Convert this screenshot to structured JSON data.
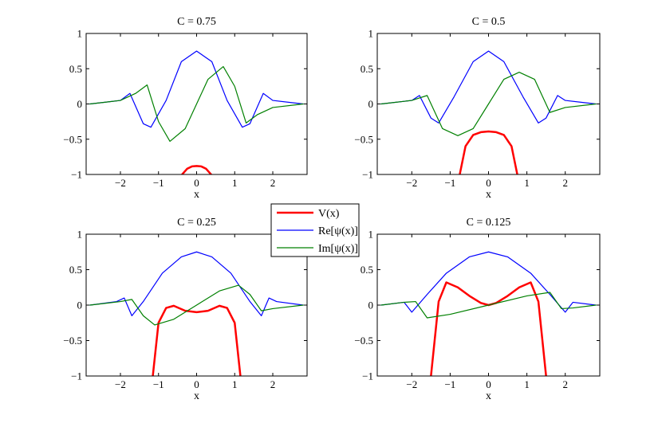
{
  "chart_data": {
    "type": "line",
    "xlabel": "x",
    "xlim": [
      -2.9,
      2.9
    ],
    "ylim": [
      -1,
      1
    ],
    "x_ticks": [
      -2,
      -1,
      0,
      1,
      2
    ],
    "x_tick_labels": [
      "−2",
      "−1",
      "0",
      "1",
      "2"
    ],
    "y_ticks": [
      1,
      0.5,
      0,
      -0.5,
      -1
    ],
    "y_tick_labels": [
      "1",
      "0.5",
      "0",
      "−0.5",
      "−1"
    ],
    "legend": {
      "location": "center",
      "entries": [
        {
          "label": "V(x)",
          "color": "#ff0000"
        },
        {
          "label": "Re[ψ(x)]",
          "color": "#0000ff"
        },
        {
          "label": "Im[ψ(x)]",
          "color": "#008000"
        }
      ]
    },
    "panels": [
      {
        "title": "C = 0.75",
        "C": 0.75,
        "series": [
          {
            "name": "V(x)",
            "color": "#ff0000",
            "x": [
              -0.38,
              -0.25,
              -0.12,
              0.0,
              0.12,
              0.25,
              0.38
            ],
            "y": [
              -1.0,
              -0.92,
              -0.885,
              -0.88,
              -0.885,
              -0.92,
              -1.0
            ]
          },
          {
            "name": "Re[ψ(x)]",
            "color": "#0000ff",
            "x": [
              -2.8,
              -2.0,
              -1.75,
              -1.4,
              -1.2,
              -0.8,
              -0.4,
              0.0,
              0.4,
              0.8,
              1.2,
              1.4,
              1.75,
              2.0,
              2.8
            ],
            "y": [
              0.0,
              0.05,
              0.15,
              -0.28,
              -0.33,
              0.05,
              0.6,
              0.75,
              0.6,
              0.05,
              -0.33,
              -0.28,
              0.15,
              0.05,
              0.0
            ]
          },
          {
            "name": "Im[ψ(x)]",
            "color": "#008000",
            "x": [
              -2.8,
              -2.0,
              -1.6,
              -1.3,
              -1.0,
              -0.7,
              -0.3,
              0.0,
              0.3,
              0.7,
              1.0,
              1.3,
              1.6,
              2.0,
              2.8
            ],
            "y": [
              0.0,
              0.05,
              0.15,
              0.27,
              -0.25,
              -0.53,
              -0.35,
              0.0,
              0.35,
              0.53,
              0.25,
              -0.27,
              -0.15,
              -0.05,
              0.0
            ]
          }
        ]
      },
      {
        "title": "C = 0.5",
        "C": 0.5,
        "series": [
          {
            "name": "V(x)",
            "color": "#ff0000",
            "x": [
              -0.75,
              -0.6,
              -0.4,
              -0.2,
              0.0,
              0.2,
              0.4,
              0.6,
              0.75
            ],
            "y": [
              -1.0,
              -0.6,
              -0.44,
              -0.4,
              -0.39,
              -0.4,
              -0.44,
              -0.6,
              -1.0
            ]
          },
          {
            "name": "Re[ψ(x)]",
            "color": "#0000ff",
            "x": [
              -2.8,
              -2.0,
              -1.8,
              -1.5,
              -1.3,
              -0.9,
              -0.4,
              0.0,
              0.4,
              0.9,
              1.3,
              1.5,
              1.8,
              2.0,
              2.8
            ],
            "y": [
              0.0,
              0.05,
              0.12,
              -0.2,
              -0.27,
              0.1,
              0.6,
              0.75,
              0.6,
              0.1,
              -0.27,
              -0.2,
              0.12,
              0.05,
              0.0
            ]
          },
          {
            "name": "Im[ψ(x)]",
            "color": "#008000",
            "x": [
              -2.8,
              -2.0,
              -1.6,
              -1.2,
              -0.8,
              -0.4,
              0.0,
              0.4,
              0.8,
              1.2,
              1.6,
              2.0,
              2.8
            ],
            "y": [
              0.0,
              0.05,
              0.12,
              -0.35,
              -0.45,
              -0.35,
              0.0,
              0.35,
              0.45,
              0.35,
              -0.12,
              -0.05,
              0.0
            ]
          }
        ]
      },
      {
        "title": "C = 0.25",
        "C": 0.25,
        "series": [
          {
            "name": "V(x)",
            "color": "#ff0000",
            "x": [
              -1.15,
              -1.0,
              -0.8,
              -0.6,
              -0.3,
              0.0,
              0.3,
              0.6,
              0.8,
              1.0,
              1.15
            ],
            "y": [
              -1.0,
              -0.25,
              -0.04,
              -0.01,
              -0.08,
              -0.1,
              -0.08,
              -0.01,
              -0.04,
              -0.25,
              -1.0
            ]
          },
          {
            "name": "Re[ψ(x)]",
            "color": "#0000ff",
            "x": [
              -2.8,
              -2.1,
              -1.9,
              -1.7,
              -1.4,
              -0.9,
              -0.4,
              0.0,
              0.4,
              0.9,
              1.4,
              1.7,
              1.9,
              2.1,
              2.8
            ],
            "y": [
              0.0,
              0.05,
              0.1,
              -0.15,
              0.05,
              0.45,
              0.68,
              0.75,
              0.68,
              0.45,
              0.05,
              -0.15,
              0.1,
              0.05,
              0.0
            ]
          },
          {
            "name": "Im[ψ(x)]",
            "color": "#008000",
            "x": [
              -2.8,
              -2.0,
              -1.7,
              -1.4,
              -1.1,
              -0.6,
              0.0,
              0.6,
              1.1,
              1.4,
              1.7,
              2.0,
              2.8
            ],
            "y": [
              0.0,
              0.05,
              0.08,
              -0.15,
              -0.28,
              -0.2,
              0.0,
              0.2,
              0.28,
              0.15,
              -0.08,
              -0.05,
              0.0
            ]
          }
        ]
      },
      {
        "title": "C = 0.125",
        "C": 0.125,
        "series": [
          {
            "name": "V(x)",
            "color": "#ff0000",
            "x": [
              -1.5,
              -1.3,
              -1.1,
              -0.8,
              -0.5,
              -0.2,
              0.0,
              0.2,
              0.5,
              0.8,
              1.1,
              1.3,
              1.5
            ],
            "y": [
              -1.0,
              0.05,
              0.32,
              0.25,
              0.13,
              0.03,
              0.0,
              0.03,
              0.13,
              0.25,
              0.32,
              0.05,
              -1.0
            ]
          },
          {
            "name": "Re[ψ(x)]",
            "color": "#0000ff",
            "x": [
              -2.8,
              -2.2,
              -2.0,
              -1.6,
              -1.1,
              -0.5,
              0.0,
              0.5,
              1.1,
              1.6,
              2.0,
              2.2,
              2.8
            ],
            "y": [
              0.0,
              0.04,
              -0.1,
              0.15,
              0.45,
              0.68,
              0.75,
              0.68,
              0.45,
              0.15,
              -0.1,
              0.04,
              0.0
            ]
          },
          {
            "name": "Im[ψ(x)]",
            "color": "#008000",
            "x": [
              -2.8,
              -2.2,
              -1.9,
              -1.6,
              -1.0,
              0.0,
              1.0,
              1.6,
              1.9,
              2.2,
              2.8
            ],
            "y": [
              0.0,
              0.04,
              0.05,
              -0.18,
              -0.13,
              0.0,
              0.13,
              0.18,
              -0.05,
              -0.04,
              0.0
            ]
          }
        ]
      }
    ]
  }
}
